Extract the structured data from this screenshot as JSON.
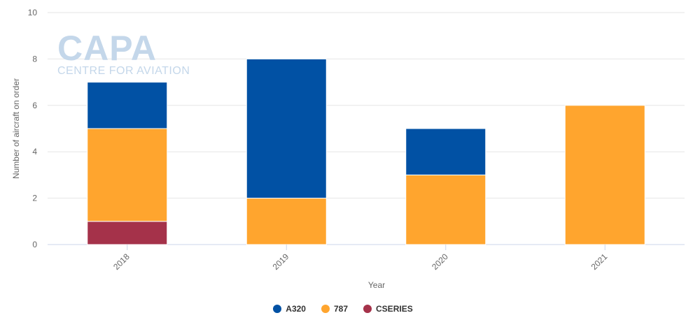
{
  "watermark": {
    "title": "CAPA",
    "subtitle": "CENTRE FOR AVIATION"
  },
  "chart_data": {
    "type": "bar",
    "stacked": true,
    "categories": [
      "2018",
      "2019",
      "2020",
      "2021"
    ],
    "series": [
      {
        "name": "CSERIES",
        "color": "#a5324a",
        "values": [
          1,
          0,
          0,
          0
        ]
      },
      {
        "name": "787",
        "color": "#ffa52e",
        "values": [
          4,
          2,
          3,
          6
        ]
      },
      {
        "name": "A320",
        "color": "#0151a4",
        "values": [
          2,
          6,
          2,
          0
        ]
      }
    ],
    "legend_order": [
      "A320",
      "787",
      "CSERIES"
    ],
    "xlabel": "Year",
    "ylabel": "Number of aircraft on order",
    "ylim": [
      0,
      10
    ],
    "yticks": [
      0,
      2,
      4,
      6,
      8,
      10
    ],
    "grid": true,
    "legend_position": "bottom-center"
  }
}
